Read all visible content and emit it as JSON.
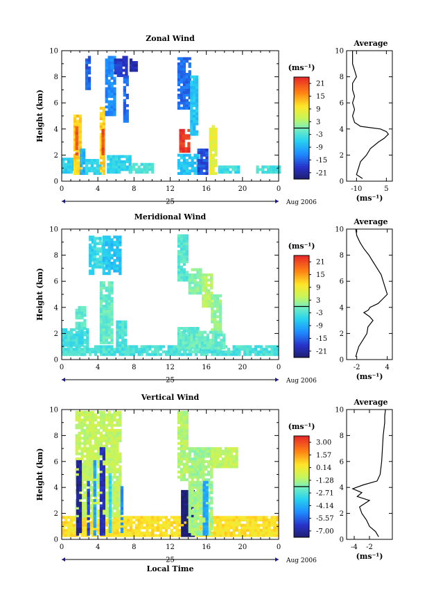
{
  "chart_data": [
    {
      "type": "heatmap",
      "title": "Zonal Wind",
      "ylabel": "Height (km)",
      "xlim": [
        0,
        24
      ],
      "ylim": [
        0,
        10
      ],
      "x_ticks": [
        "0",
        "4",
        "8",
        "12",
        "16",
        "20",
        "0"
      ],
      "y_ticks": [
        "0",
        "2",
        "4",
        "6",
        "8",
        "10"
      ],
      "date_day": "25",
      "date_month": "Aug 2006",
      "colorbar": {
        "unit": "(ms⁻¹)",
        "ticks": [
          "21",
          "15",
          "9",
          "3",
          "-3",
          "-9",
          "-15",
          "-21"
        ],
        "range": [
          -24,
          24
        ]
      },
      "patches": [
        {
          "t": [
            0.0,
            1.3
          ],
          "h": [
            0.6,
            1.8
          ],
          "v": -6
        },
        {
          "t": [
            1.3,
            2.0
          ],
          "h": [
            0.5,
            5.0
          ],
          "v": 12
        },
        {
          "t": [
            1.5,
            1.8
          ],
          "h": [
            2.0,
            4.4
          ],
          "v": 20
        },
        {
          "t": [
            2.0,
            2.6
          ],
          "h": [
            0.5,
            2.4
          ],
          "v": -9
        },
        {
          "t": [
            2.6,
            4.2
          ],
          "h": [
            0.5,
            1.6
          ],
          "v": -5
        },
        {
          "t": [
            2.6,
            3.2
          ],
          "h": [
            7.0,
            9.5
          ],
          "v": -15
        },
        {
          "t": [
            4.2,
            4.8
          ],
          "h": [
            0.5,
            5.6
          ],
          "v": 12
        },
        {
          "t": [
            4.4,
            4.7
          ],
          "h": [
            2.0,
            4.0
          ],
          "v": 21
        },
        {
          "t": [
            4.8,
            5.8
          ],
          "h": [
            5.0,
            9.5
          ],
          "v": -12
        },
        {
          "t": [
            5.8,
            7.2
          ],
          "h": [
            8.0,
            9.5
          ],
          "v": -18
        },
        {
          "t": [
            6.8,
            7.2
          ],
          "h": [
            4.5,
            8.0
          ],
          "v": -14
        },
        {
          "t": [
            5.0,
            7.5
          ],
          "h": [
            0.6,
            2.0
          ],
          "v": -5
        },
        {
          "t": [
            7.5,
            8.2
          ],
          "h": [
            8.4,
            9.3
          ],
          "v": -20
        },
        {
          "t": [
            7.5,
            10.0
          ],
          "h": [
            0.6,
            1.4
          ],
          "v": -3
        },
        {
          "t": [
            12.8,
            14.2
          ],
          "h": [
            5.5,
            9.5
          ],
          "v": -14
        },
        {
          "t": [
            13.0,
            14.2
          ],
          "h": [
            2.2,
            3.9
          ],
          "v": 23
        },
        {
          "t": [
            12.8,
            15.0
          ],
          "h": [
            0.5,
            2.0
          ],
          "v": -7
        },
        {
          "t": [
            14.2,
            15.0
          ],
          "h": [
            3.5,
            8.0
          ],
          "v": -7
        },
        {
          "t": [
            15.0,
            16.2
          ],
          "h": [
            0.5,
            2.5
          ],
          "v": -16
        },
        {
          "t": [
            16.3,
            17.2
          ],
          "h": [
            0.5,
            4.3
          ],
          "v": 8
        },
        {
          "t": [
            17.3,
            19.5
          ],
          "h": [
            0.6,
            1.2
          ],
          "v": -4
        },
        {
          "t": [
            21.5,
            24.0
          ],
          "h": [
            0.6,
            1.2
          ],
          "v": -3
        }
      ],
      "average": {
        "xlim": [
          -15,
          8
        ],
        "x_ticks": [
          "-10",
          "5"
        ],
        "x_tick_values": [
          -10,
          5
        ],
        "xlabel": "(ms⁻¹)",
        "profile_h": [
          0.2,
          0.5,
          1.0,
          1.5,
          2.0,
          2.5,
          3.0,
          3.3,
          3.6,
          3.8,
          4.0,
          4.2,
          4.5,
          5.0,
          5.5,
          6.0,
          6.5,
          7.0,
          7.5,
          8.0,
          8.5,
          9.0,
          9.5,
          10.0
        ],
        "profile_v": [
          -7,
          -10,
          -9,
          -8,
          -5,
          -3,
          1,
          4,
          6,
          5,
          2,
          -8,
          -11,
          -12,
          -11,
          -12,
          -11,
          -12,
          -12,
          -10,
          -11,
          -12,
          -12,
          -12
        ]
      },
      "average_title": "Average"
    },
    {
      "type": "heatmap",
      "title": "Meridional Wind",
      "ylabel": "Height (km)",
      "xlim": [
        0,
        24
      ],
      "ylim": [
        0,
        10
      ],
      "x_ticks": [
        "0",
        "4",
        "8",
        "12",
        "16",
        "20",
        "0"
      ],
      "y_ticks": [
        "0",
        "2",
        "4",
        "6",
        "8",
        "10"
      ],
      "date_day": "25",
      "date_month": "Aug 2006",
      "colorbar": {
        "unit": "(ms⁻¹)",
        "ticks": [
          "21",
          "15",
          "9",
          "3",
          "-3",
          "-9",
          "-15",
          "-21"
        ],
        "range": [
          -24,
          24
        ]
      },
      "patches": [
        {
          "t": [
            0.0,
            24.0
          ],
          "h": [
            0.3,
            1.0
          ],
          "v": -3
        },
        {
          "t": [
            0.0,
            3.0
          ],
          "h": [
            1.0,
            2.3
          ],
          "v": -4
        },
        {
          "t": [
            1.5,
            2.5
          ],
          "h": [
            2.3,
            4.0
          ],
          "v": -2
        },
        {
          "t": [
            3.0,
            3.5
          ],
          "h": [
            6.5,
            9.5
          ],
          "v": -6
        },
        {
          "t": [
            3.5,
            4.5
          ],
          "h": [
            7.0,
            9.4
          ],
          "v": -4
        },
        {
          "t": [
            4.5,
            6.5
          ],
          "h": [
            6.5,
            9.5
          ],
          "v": -7
        },
        {
          "t": [
            4.2,
            5.5
          ],
          "h": [
            1.2,
            6.0
          ],
          "v": -1
        },
        {
          "t": [
            6.0,
            7.0
          ],
          "h": [
            1.0,
            3.0
          ],
          "v": -3
        },
        {
          "t": [
            12.8,
            14.0
          ],
          "h": [
            6.0,
            9.5
          ],
          "v": -2
        },
        {
          "t": [
            12.8,
            15.0
          ],
          "h": [
            0.5,
            2.5
          ],
          "v": -2
        },
        {
          "t": [
            14.0,
            15.5
          ],
          "h": [
            5.0,
            7.0
          ],
          "v": 1
        },
        {
          "t": [
            15.5,
            16.5
          ],
          "h": [
            4.0,
            6.5
          ],
          "v": 4
        },
        {
          "t": [
            16.5,
            17.5
          ],
          "h": [
            2.0,
            5.0
          ],
          "v": 2
        },
        {
          "t": [
            13.0,
            18.0
          ],
          "h": [
            0.8,
            2.2
          ],
          "v": -1
        }
      ],
      "average": {
        "xlim": [
          -4,
          5
        ],
        "x_ticks": [
          "-2",
          "4"
        ],
        "x_tick_values": [
          -2,
          4
        ],
        "xlabel": "(ms⁻¹)",
        "profile_h": [
          0.2,
          0.5,
          1.0,
          1.5,
          2.0,
          2.5,
          3.0,
          3.3,
          3.6,
          3.8,
          4.0,
          4.3,
          4.6,
          5.0,
          5.5,
          6.0,
          6.5,
          7.0,
          7.5,
          8.0,
          8.5,
          9.0,
          9.5,
          10.0
        ],
        "profile_v": [
          -2.2,
          -2.0,
          -1.6,
          -0.8,
          0.0,
          0.2,
          1.2,
          0.5,
          -0.6,
          0.3,
          0.6,
          2.2,
          3.0,
          4.0,
          3.6,
          3.2,
          2.8,
          2.0,
          1.2,
          0.4,
          -0.6,
          -1.4,
          -2.0,
          -2.2
        ]
      },
      "average_title": "Average"
    },
    {
      "type": "heatmap",
      "title": "Vertical Wind",
      "ylabel": "Height (km)",
      "xlabel": "Local Time",
      "xlim": [
        0,
        24
      ],
      "ylim": [
        0,
        10
      ],
      "x_ticks": [
        "0",
        "4",
        "8",
        "12",
        "16",
        "20",
        "0"
      ],
      "y_ticks": [
        "0",
        "2",
        "4",
        "6",
        "8",
        "10"
      ],
      "date_day": "25",
      "date_month": "Aug 2006",
      "colorbar": {
        "unit": "(ms⁻¹)",
        "ticks": [
          "3.00",
          "1.57",
          "0.14",
          "-1.28",
          "-2.71",
          "-4.14",
          "-5.57",
          "-7.00"
        ],
        "range": [
          -7.0,
          3.0
        ]
      },
      "patches": [
        {
          "t": [
            0.0,
            24.0
          ],
          "h": [
            0.2,
            1.7
          ],
          "v": 0.2
        },
        {
          "t": [
            1.5,
            6.5
          ],
          "h": [
            1.7,
            9.8
          ],
          "v": -1.0
        },
        {
          "t": [
            1.6,
            2.0
          ],
          "h": [
            0.3,
            6.0
          ],
          "v": -6.5
        },
        {
          "t": [
            2.8,
            3.1
          ],
          "h": [
            0.3,
            4.5
          ],
          "v": -5.5
        },
        {
          "t": [
            3.5,
            3.8
          ],
          "h": [
            0.3,
            6.0
          ],
          "v": -4.0
        },
        {
          "t": [
            4.2,
            4.6
          ],
          "h": [
            0.3,
            7.0
          ],
          "v": -6.0
        },
        {
          "t": [
            5.2,
            5.5
          ],
          "h": [
            0.3,
            5.0
          ],
          "v": -3.0
        },
        {
          "t": [
            6.5,
            6.8
          ],
          "h": [
            0.3,
            4.0
          ],
          "v": -4.5
        },
        {
          "t": [
            12.8,
            14.0
          ],
          "h": [
            4.5,
            9.8
          ],
          "v": -1.2
        },
        {
          "t": [
            13.2,
            14.6
          ],
          "h": [
            0.2,
            3.8
          ],
          "v": -7.0
        },
        {
          "t": [
            14.0,
            16.5
          ],
          "h": [
            0.3,
            7.0
          ],
          "v": -1.5
        },
        {
          "t": [
            15.6,
            16.0
          ],
          "h": [
            0.3,
            4.5
          ],
          "v": -4.0
        },
        {
          "t": [
            16.5,
            19.5
          ],
          "h": [
            5.5,
            7.0
          ],
          "v": -1.0
        }
      ],
      "average": {
        "xlim": [
          -5,
          1
        ],
        "x_ticks": [
          "-4",
          "-2"
        ],
        "x_tick_values": [
          -4,
          -2
        ],
        "xlabel": "(ms⁻¹)",
        "profile_h": [
          0.2,
          0.6,
          1.0,
          1.5,
          2.0,
          2.5,
          3.0,
          3.3,
          3.6,
          3.9,
          4.2,
          4.5,
          5.0,
          6.0,
          7.0,
          8.0,
          8.5,
          9.0,
          9.5,
          10.0
        ],
        "profile_v": [
          -0.8,
          -1.2,
          -2.0,
          -2.4,
          -3.0,
          -3.3,
          -2.0,
          -3.6,
          -3.0,
          -4.2,
          -2.8,
          -1.0,
          -0.6,
          -0.4,
          -0.3,
          -0.2,
          -0.1,
          0.0,
          0.0,
          0.1
        ]
      },
      "average_title": "Average"
    }
  ]
}
